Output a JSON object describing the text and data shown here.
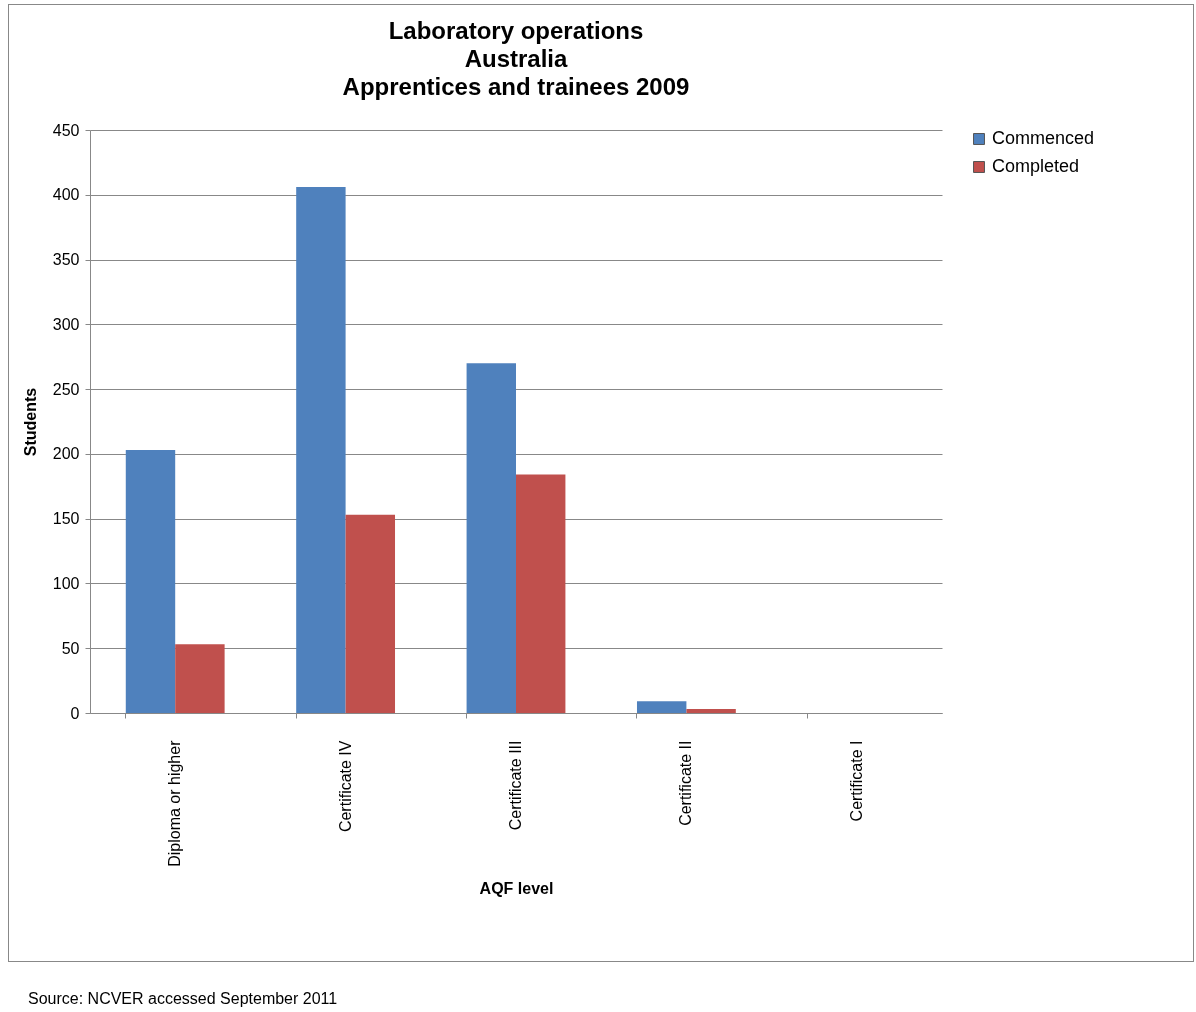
{
  "chart_data": {
    "type": "bar",
    "title": "Laboratory operations\nAustralia\nApprentices and trainees 2009",
    "xlabel": "AQF level",
    "ylabel": "Students",
    "categories": [
      "Diploma or higher",
      "Certificate IV",
      "Certificate III",
      "Certificate II",
      "Certificate I"
    ],
    "series": [
      {
        "name": "Commenced",
        "color": "#4f81bd",
        "values": [
          203,
          406,
          270,
          9,
          0
        ]
      },
      {
        "name": "Completed",
        "color": "#c0504d",
        "values": [
          53,
          153,
          184,
          3,
          0
        ]
      }
    ],
    "ylim": [
      0,
      450
    ],
    "yticks": [
      0,
      50,
      100,
      150,
      200,
      250,
      300,
      350,
      400,
      450
    ],
    "grid": "y",
    "legend": "right",
    "annotations": [
      "Source: NCVER accessed September 2011"
    ]
  }
}
